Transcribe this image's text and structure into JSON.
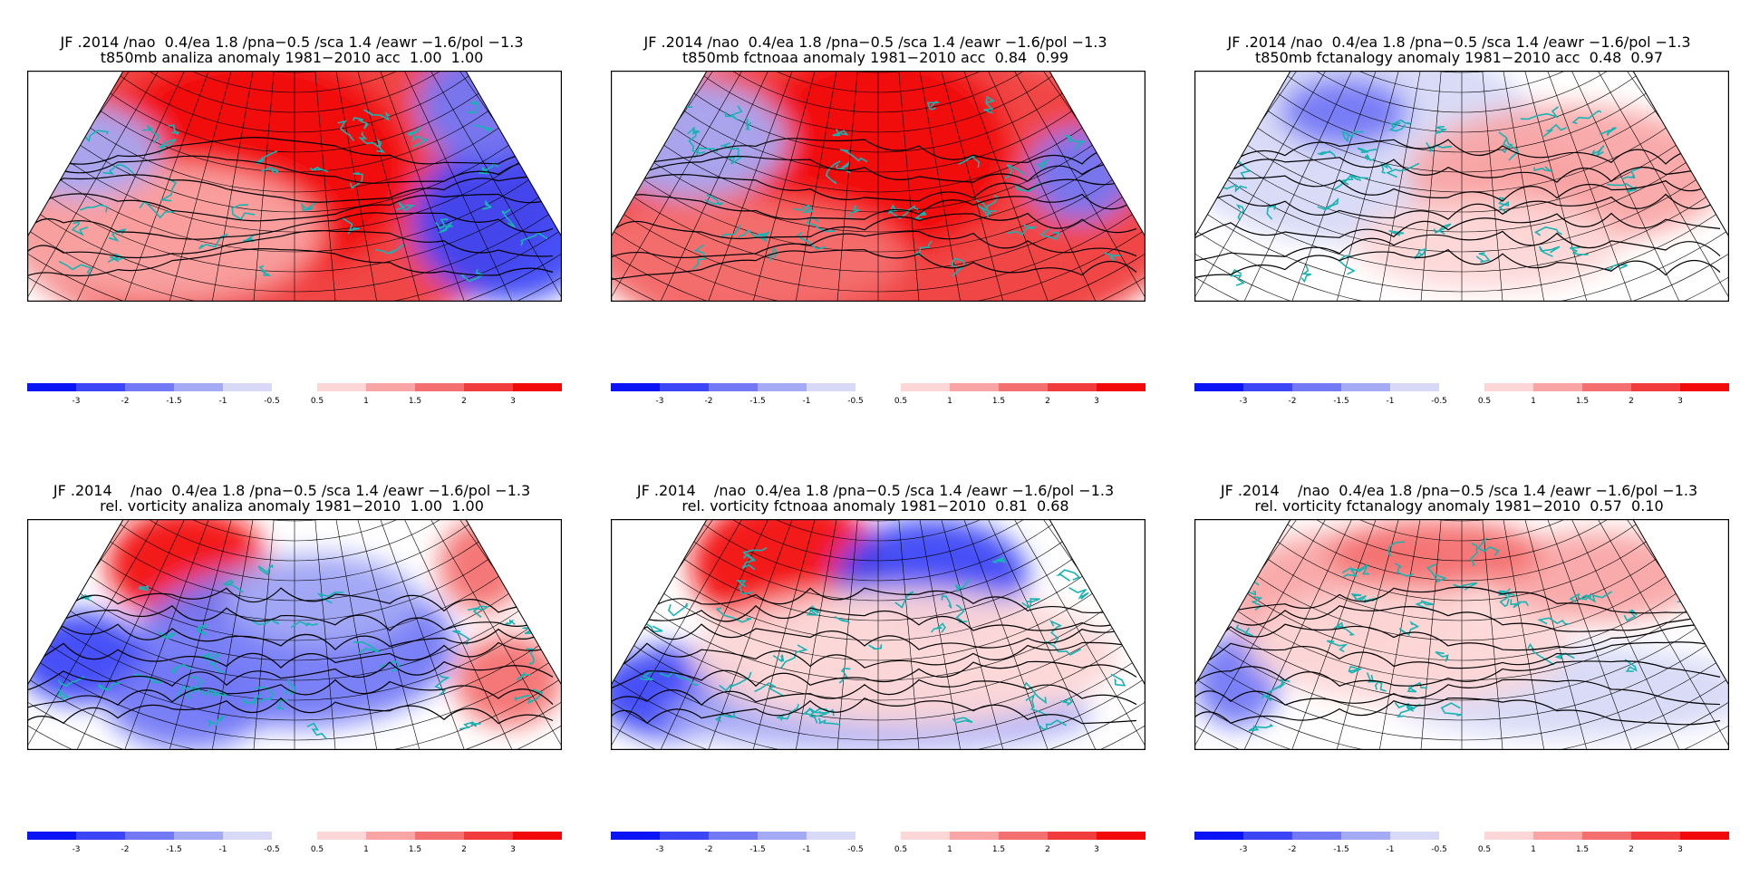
{
  "colors": {
    "scale": [
      "#0a14f5",
      "#3c46f5",
      "#7378f5",
      "#a5aaf5",
      "#d7d9f7",
      "#ffffff",
      "#fdd7d7",
      "#f9a5a5",
      "#f47070",
      "#f03c3c",
      "#f20a0a"
    ],
    "coast": "#18b3b3",
    "grid": "#000000"
  },
  "colorbar": {
    "neg_labels": [
      "-3",
      "-2",
      "-1.5",
      "-1",
      "-0.5"
    ],
    "pos_labels": [
      "0.5",
      "1",
      "1.5",
      "2",
      "3"
    ]
  },
  "panels": [
    {
      "id": "t850-analiza",
      "title": "JF .2014 /nao  0.4/ea 1.8 /pna−0.5 /sca 1.4 /eawr −1.6/pol −1.3",
      "subtitle": "t850mb analiza anomaly 1981−2010 acc  1.00  1.00"
    },
    {
      "id": "t850-fctnoaa",
      "title": "JF .2014 /nao  0.4/ea 1.8 /pna−0.5 /sca 1.4 /eawr −1.6/pol −1.3",
      "subtitle": "t850mb fctnoaa anomaly 1981−2010 acc  0.84  0.99"
    },
    {
      "id": "t850-fctanalogy",
      "title": "JF .2014 /nao  0.4/ea 1.8 /pna−0.5 /sca 1.4 /eawr −1.6/pol −1.3",
      "subtitle": "t850mb fctanalogy anomaly 1981−2010 acc  0.48  0.97"
    },
    {
      "id": "vort-analiza",
      "title": "JF .2014    /nao  0.4/ea 1.8 /pna−0.5 /sca 1.4 /eawr −1.6/pol −1.3",
      "subtitle": "rel. vorticity analiza anomaly 1981−2010  1.00  1.00"
    },
    {
      "id": "vort-fctnoaa",
      "title": "JF .2014    /nao  0.4/ea 1.8 /pna−0.5 /sca 1.4 /eawr −1.6/pol −1.3",
      "subtitle": "rel. vorticity fctnoaa anomaly 1981−2010  0.81  0.68"
    },
    {
      "id": "vort-fctanalogy",
      "title": "JF .2014    /nao  0.4/ea 1.8 /pna−0.5 /sca 1.4 /eawr −1.6/pol −1.3",
      "subtitle": "rel. vorticity fctanalogy anomaly 1981−2010  0.57  0.10"
    }
  ]
}
